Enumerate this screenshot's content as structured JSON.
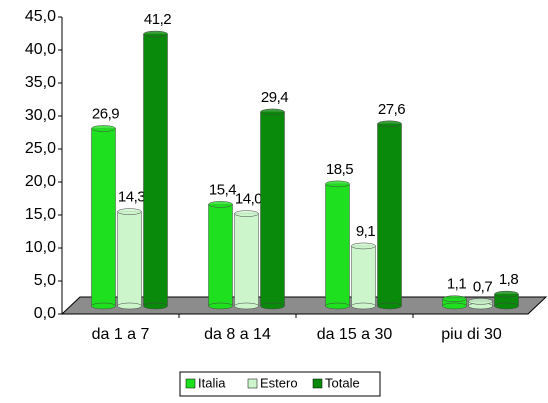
{
  "chart_data": {
    "type": "bar",
    "categories": [
      "da 1 a 7",
      "da 8 a 14",
      "da 15 a 30",
      "piu di 30"
    ],
    "series": [
      {
        "name": "Italia",
        "color": "#1fe01f",
        "values": [
          26.9,
          15.4,
          18.5,
          1.1
        ],
        "value_labels": [
          "26,9",
          "15,4",
          "18,5",
          "1,1"
        ]
      },
      {
        "name": "Estero",
        "color": "#ccf5cc",
        "values": [
          14.3,
          14.0,
          9.1,
          0.7
        ],
        "value_labels": [
          "14,3",
          "14,0",
          "9,1",
          "0,7"
        ]
      },
      {
        "name": "Totale",
        "color": "#0a8a0a",
        "values": [
          41.2,
          29.4,
          27.6,
          1.8
        ],
        "value_labels": [
          "41,2",
          "29,4",
          "27,6",
          "1,8"
        ]
      }
    ],
    "ylim": [
      0,
      45
    ],
    "yticks": [
      {
        "value": 0,
        "label": "0,0"
      },
      {
        "value": 5,
        "label": "5,0"
      },
      {
        "value": 10,
        "label": "10,0"
      },
      {
        "value": 15,
        "label": "15,0"
      },
      {
        "value": 20,
        "label": "20,0"
      },
      {
        "value": 25,
        "label": "25,0"
      },
      {
        "value": 30,
        "label": "30,0"
      },
      {
        "value": 35,
        "label": "35,0"
      },
      {
        "value": 40,
        "label": "40,0"
      },
      {
        "value": 45,
        "label": "45,0"
      }
    ],
    "legend": "bottom"
  }
}
